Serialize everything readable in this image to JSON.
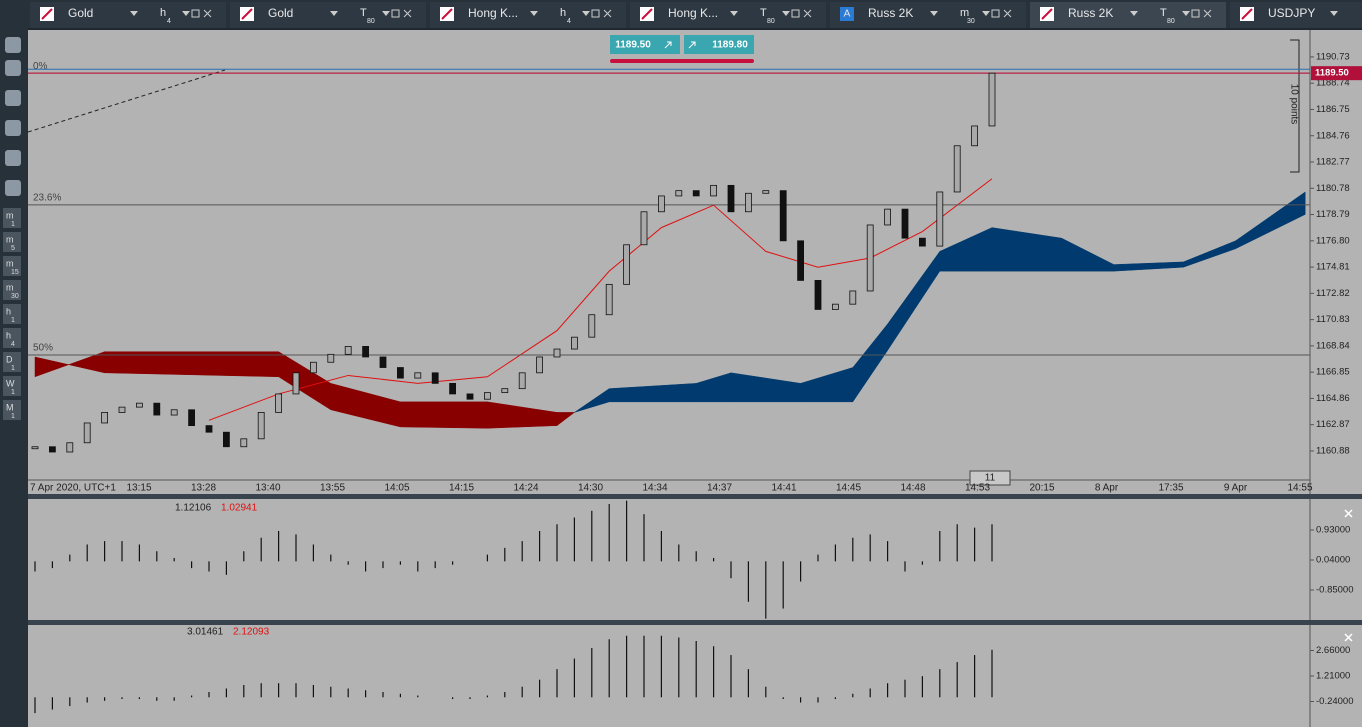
{
  "tabs": [
    {
      "title": "Gold",
      "period": {
        "unit": "h",
        "n": 4
      }
    },
    {
      "title": "Gold",
      "period": {
        "unit": "T",
        "n": 80
      }
    },
    {
      "title": "Hong K...",
      "period": {
        "unit": "h",
        "n": 4
      }
    },
    {
      "title": "Hong K...",
      "period": {
        "unit": "T",
        "n": 80
      }
    },
    {
      "badge": "A",
      "title": "Russ 2K",
      "period": {
        "unit": "m",
        "n": 30
      }
    },
    {
      "title": "Russ 2K",
      "period": {
        "unit": "T",
        "n": 80
      }
    },
    {
      "title": "USDJPY"
    }
  ],
  "timeframes": [
    {
      "unit": "m",
      "n": 1
    },
    {
      "unit": "m",
      "n": 5
    },
    {
      "unit": "m",
      "n": 15
    },
    {
      "unit": "m",
      "n": 30
    },
    {
      "unit": "h",
      "n": 1
    },
    {
      "unit": "h",
      "n": 4
    },
    {
      "unit": "D",
      "n": 1
    },
    {
      "unit": "W",
      "n": 1
    },
    {
      "unit": "M",
      "n": 1
    }
  ],
  "chart_data": [
    {
      "type": "candlestick",
      "bid": {
        "value": 1189.5,
        "label": "1189.50"
      },
      "ask": {
        "value": 1189.8,
        "label": "1189.80"
      },
      "values": [
        1161.2,
        1160.8,
        1161.5,
        1163.0,
        1163.8,
        1164.2,
        1164.5,
        1163.6,
        1164.0,
        1162.8,
        1162.3,
        1161.2,
        1161.8,
        1163.8,
        1165.2,
        1166.8,
        1167.6,
        1168.2,
        1168.8,
        1168.0,
        1167.2,
        1166.4,
        1166.8,
        1166.0,
        1165.2,
        1164.8,
        1165.3,
        1165.6,
        1166.8,
        1168.0,
        1168.6,
        1169.5,
        1171.2,
        1173.5,
        1176.5,
        1179.0,
        1180.2,
        1180.6,
        1180.2,
        1181.0,
        1179.0,
        1180.4,
        1180.6,
        1176.8,
        1173.8,
        1171.6,
        1172.0,
        1173.0,
        1178.0,
        1179.2,
        1177.0,
        1176.4,
        1180.5,
        1184.0,
        1185.5,
        1189.5
      ],
      "cloud": {
        "x": [
          0,
          4,
          14,
          17,
          21,
          26,
          30,
          31,
          33,
          38,
          40,
          44,
          47,
          49,
          52,
          55,
          59,
          62,
          66,
          69,
          73
        ],
        "span_a": [
          1168.0,
          1166.8,
          1166.5,
          1164.0,
          1162.7,
          1162.6,
          1162.8,
          1163.8,
          1165.6,
          1166.0,
          1166.8,
          1166.0,
          1167.2,
          1170.5,
          1176.0,
          1177.8,
          1177.0,
          1175.0,
          1175.2,
          1176.8,
          1180.5
        ],
        "span_b": [
          1166.5,
          1168.4,
          1168.4,
          1166.0,
          1164.6,
          1164.6,
          1163.8,
          1163.8,
          1164.6,
          1164.6,
          1164.6,
          1164.6,
          1164.6,
          1168.5,
          1174.5,
          1174.5,
          1174.5,
          1174.5,
          1174.8,
          1176.2,
          1178.8
        ]
      },
      "moving_average": {
        "x": [
          10,
          14,
          18,
          22,
          26,
          30,
          33,
          36,
          39,
          42,
          45,
          48,
          51,
          55
        ],
        "values": [
          1163.2,
          1165.2,
          1166.6,
          1166.0,
          1166.5,
          1170,
          1174.5,
          1177.8,
          1179.5,
          1176,
          1174.8,
          1175.5,
          1177.5,
          1181.5
        ]
      },
      "fib_levels": [
        {
          "label": "0%",
          "value": 1189.5
        },
        {
          "label": "23.6%",
          "value": 1179.52
        },
        {
          "label": "50%",
          "value": 1168.15
        }
      ],
      "ylim": [
        1158.68,
        1192.77
      ],
      "yticks": [
        1160.88,
        1162.87,
        1164.86,
        1166.85,
        1168.84,
        1170.83,
        1172.82,
        1174.81,
        {
          "value": 1176.8,
          "label": "1176.80"
        },
        1178.79,
        1180.78,
        1182.77,
        1184.76,
        1186.75,
        1188.74,
        1190.73
      ],
      "time_labels": [
        "7 Apr 2020, UTC+1",
        "13:15",
        "13:28",
        "13:40",
        "13:55",
        "14:05",
        "14:15",
        "14:24",
        "14:30",
        "14:34",
        "14:37",
        "14:41",
        "14:45",
        "14:48",
        "14:53",
        "20:15",
        "8 Apr",
        "17:35",
        "9 Apr",
        "14:55"
      ],
      "annotations": [
        "10 points",
        "11"
      ]
    },
    {
      "type": "histogram",
      "header": [
        "1.12106",
        "1.02941"
      ],
      "values": [
        -0.3,
        -0.2,
        0.2,
        0.5,
        0.6,
        0.6,
        0.5,
        0.3,
        0.1,
        -0.2,
        -0.3,
        -0.4,
        0.3,
        0.7,
        0.9,
        0.8,
        0.5,
        0.2,
        -0.1,
        -0.3,
        -0.2,
        -0.1,
        -0.3,
        -0.2,
        -0.1,
        0.0,
        0.2,
        0.4,
        0.6,
        0.9,
        1.1,
        1.3,
        1.5,
        1.7,
        1.8,
        1.4,
        0.9,
        0.5,
        0.3,
        0.1,
        -0.5,
        -1.2,
        -1.7,
        -1.4,
        -0.6,
        0.2,
        0.5,
        0.7,
        0.8,
        0.6,
        -0.3,
        -0.1,
        0.9,
        1.1,
        1.0,
        1.1
      ],
      "ylim": [
        -1.74,
        1.82
      ],
      "yticks": [
        {
          "value": 0.93,
          "label": "0.93000"
        },
        {
          "value": 0.04,
          "label": "0.04000"
        },
        {
          "value": -0.85,
          "label": "-0.85000"
        }
      ]
    },
    {
      "type": "histogram",
      "header": [
        "3.01461",
        "2.12093"
      ],
      "values": [
        -0.9,
        -0.7,
        -0.5,
        -0.3,
        -0.2,
        -0.1,
        -0.1,
        -0.2,
        -0.2,
        0.1,
        0.3,
        0.5,
        0.7,
        0.8,
        0.8,
        0.8,
        0.7,
        0.6,
        0.5,
        0.4,
        0.3,
        0.2,
        0.1,
        0.0,
        -0.1,
        -0.1,
        0.1,
        0.3,
        0.6,
        1.0,
        1.6,
        2.2,
        2.8,
        3.3,
        3.5,
        3.5,
        3.5,
        3.4,
        3.2,
        2.9,
        2.4,
        1.6,
        0.6,
        -0.1,
        -0.3,
        -0.3,
        -0.1,
        0.2,
        0.5,
        0.8,
        1.0,
        1.2,
        1.6,
        2.0,
        2.4,
        2.7
      ],
      "ylim": [
        -1.69,
        4.11
      ],
      "yticks": [
        {
          "value": 2.66,
          "label": "2.66000"
        },
        {
          "value": 1.21,
          "label": "1.21000"
        },
        {
          "value": -0.24,
          "label": "-0.24000"
        }
      ]
    }
  ]
}
